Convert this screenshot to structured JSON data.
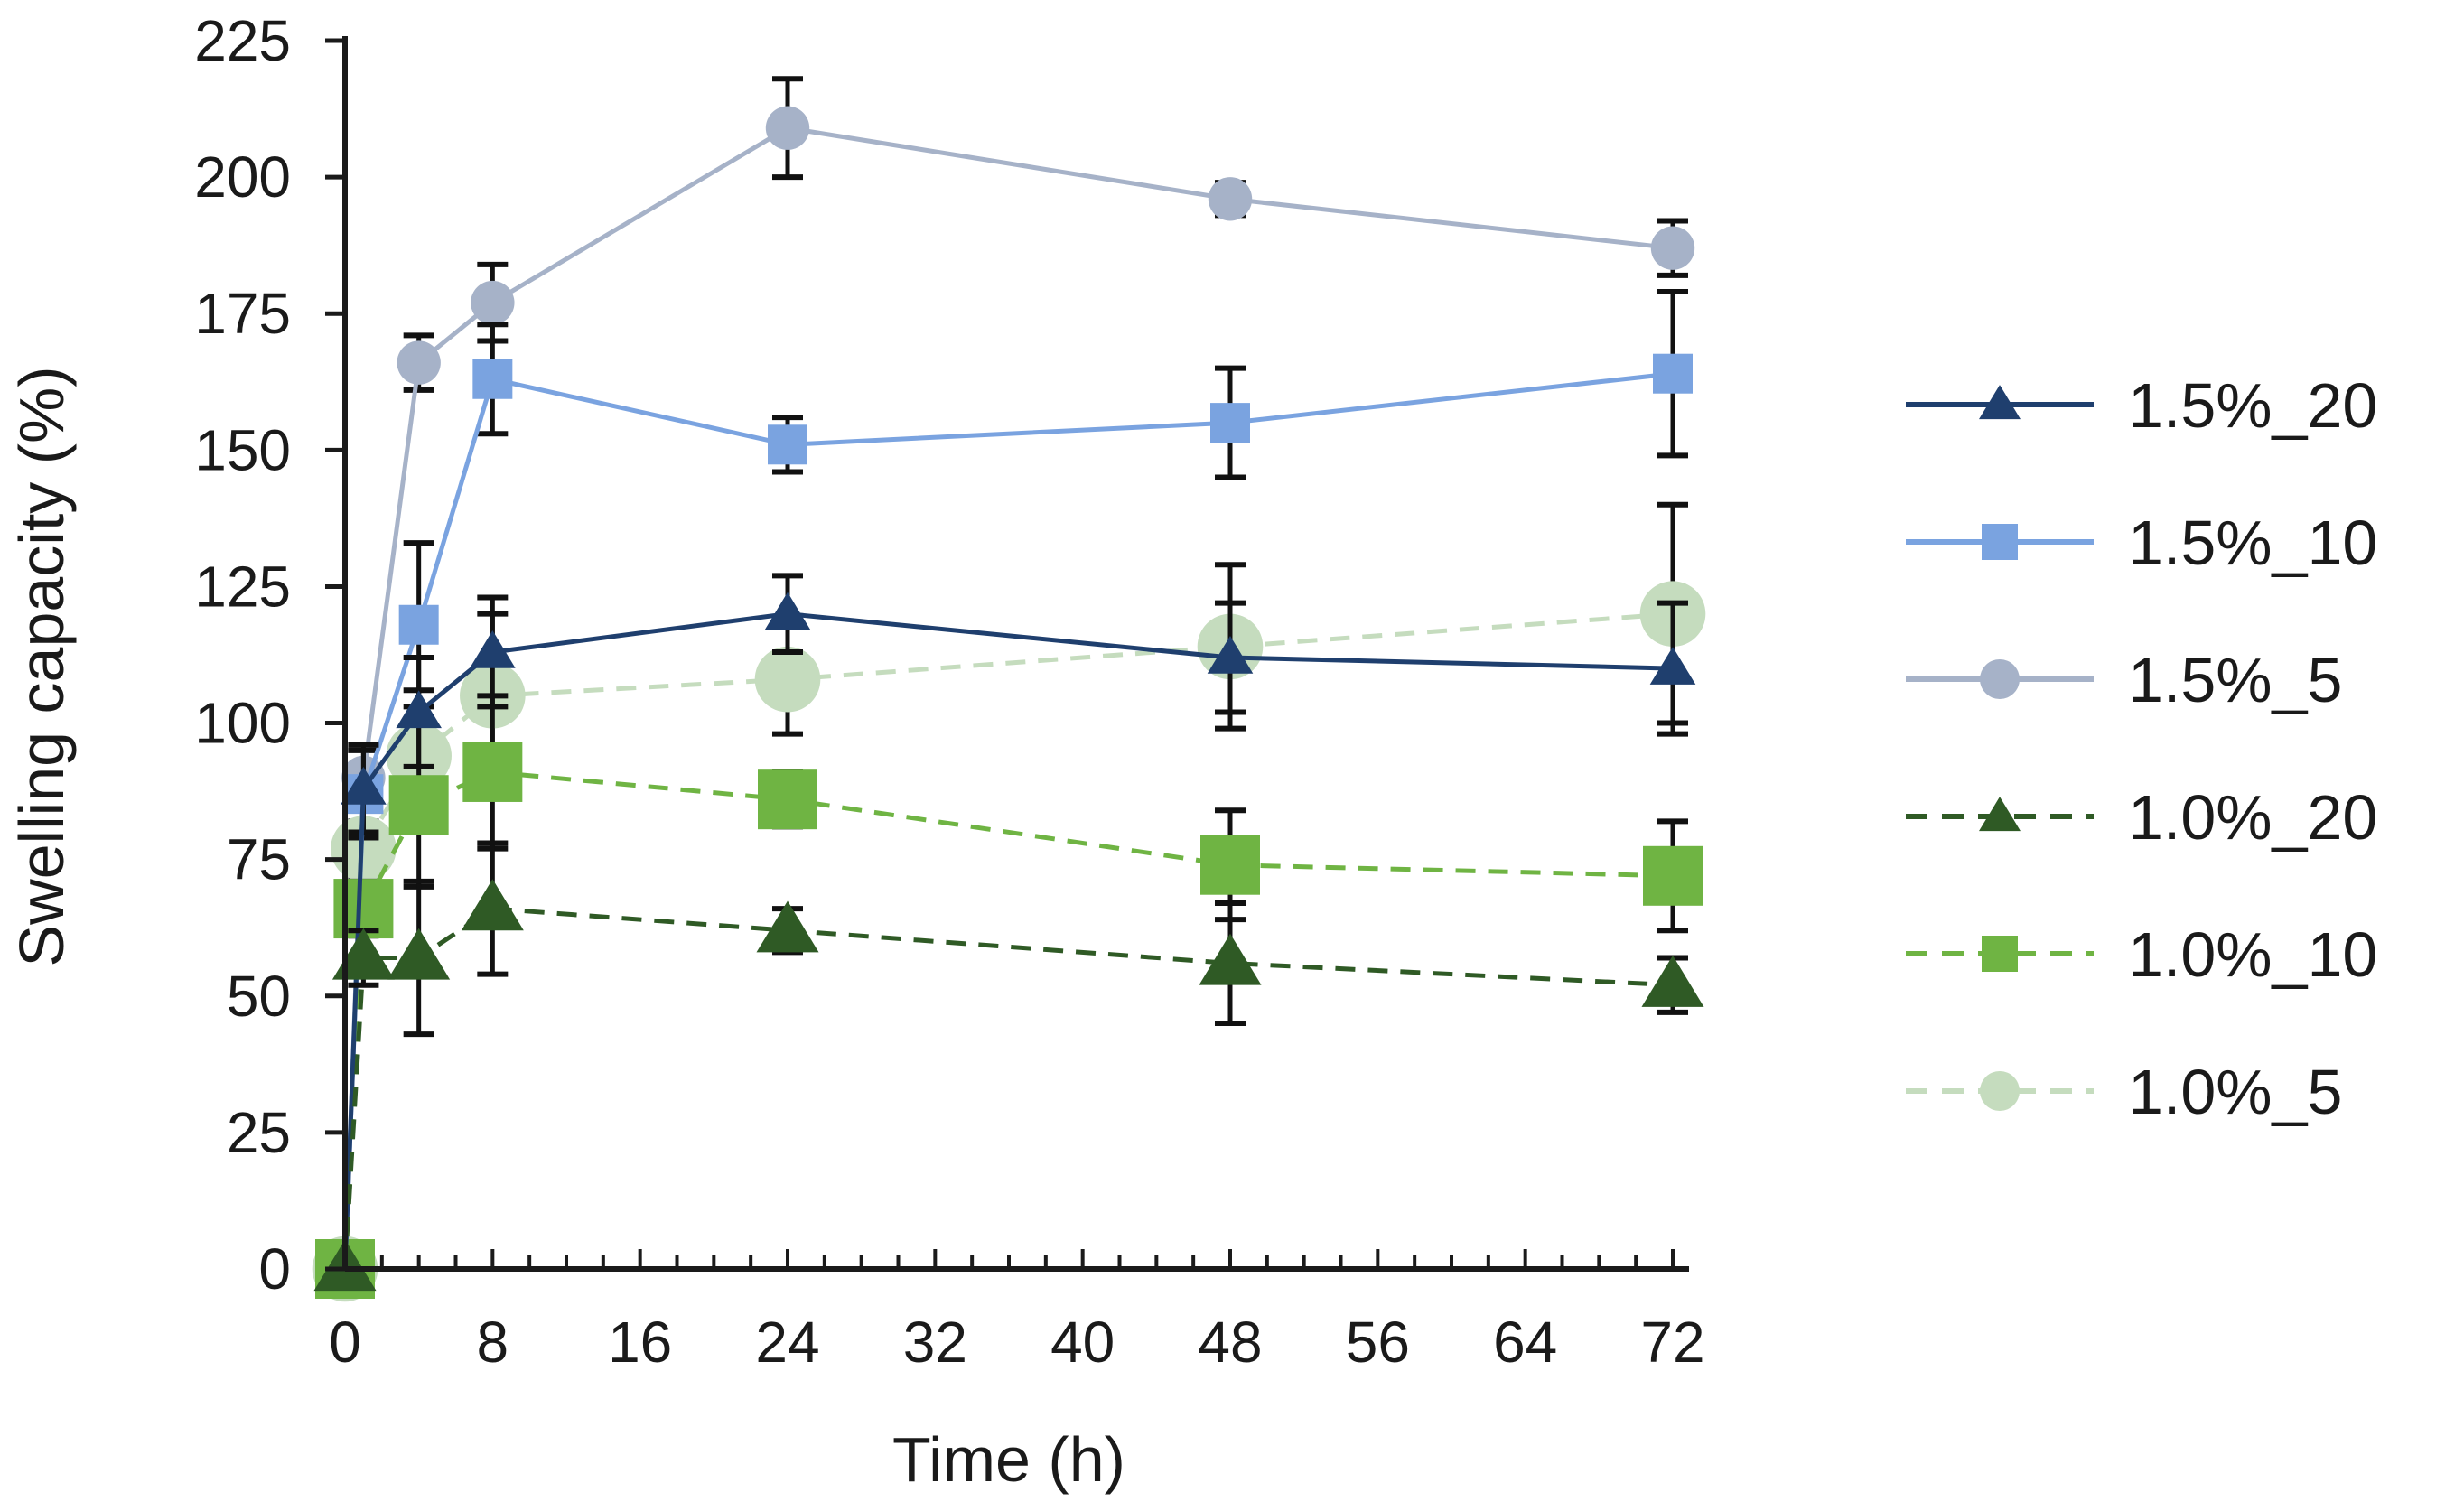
{
  "chart_data": {
    "type": "line",
    "title": "",
    "xlabel": "Time (h)",
    "ylabel": "Swelling capacity (%)",
    "xlim": [
      0,
      72
    ],
    "ylim": [
      0,
      225
    ],
    "xticks": [
      0,
      8,
      16,
      24,
      32,
      40,
      48,
      56,
      64,
      72
    ],
    "yticks": [
      0,
      25,
      50,
      75,
      100,
      125,
      150,
      175,
      200,
      225
    ],
    "grid": false,
    "legend_position": "right",
    "series": [
      {
        "name": "1.5%_20",
        "color": "#1f3f6e",
        "marker": "triangle",
        "dashed": false,
        "x": [
          0,
          1,
          4,
          8,
          24,
          48,
          72
        ],
        "values": [
          0,
          88,
          102,
          113,
          120,
          112,
          110
        ],
        "errors": [
          0,
          8,
          10,
          10,
          7,
          10,
          12
        ]
      },
      {
        "name": "1.5%_10",
        "color": "#7aa3e0",
        "marker": "square",
        "dashed": false,
        "x": [
          0,
          1,
          4,
          8,
          24,
          48,
          72
        ],
        "values": [
          0,
          87,
          118,
          163,
          151,
          155,
          164
        ],
        "errors": [
          0,
          8,
          15,
          10,
          5,
          10,
          15
        ]
      },
      {
        "name": "1.5%_5",
        "color": "#a6b2c8",
        "marker": "circle",
        "dashed": false,
        "x": [
          0,
          1,
          4,
          8,
          24,
          48,
          72
        ],
        "values": [
          0,
          90,
          166,
          177,
          209,
          196,
          187
        ],
        "errors": [
          0,
          5,
          5,
          7,
          9,
          3,
          5
        ]
      },
      {
        "name": "1.0%_20",
        "color": "#2f5a25",
        "marker": "triangle",
        "dashed": true,
        "x": [
          0,
          1,
          4,
          8,
          24,
          48,
          72
        ],
        "values": [
          0,
          57,
          57,
          66,
          62,
          56,
          52
        ],
        "errors": [
          0,
          5,
          14,
          12,
          4,
          11,
          5
        ]
      },
      {
        "name": "1.0%_10",
        "color": "#6fb443",
        "marker": "square",
        "dashed": true,
        "x": [
          0,
          1,
          4,
          8,
          24,
          48,
          72
        ],
        "values": [
          0,
          66,
          85,
          91,
          86,
          74,
          72
        ],
        "errors": [
          0,
          5,
          15,
          14,
          5,
          10,
          10
        ]
      },
      {
        "name": "1.0%_5",
        "color": "#c5dcbe",
        "marker": "circle",
        "dashed": true,
        "x": [
          0,
          1,
          4,
          8,
          24,
          48,
          72
        ],
        "values": [
          0,
          77,
          94,
          105,
          108,
          114,
          120
        ],
        "errors": [
          0,
          5,
          12,
          15,
          10,
          15,
          20
        ]
      }
    ]
  }
}
